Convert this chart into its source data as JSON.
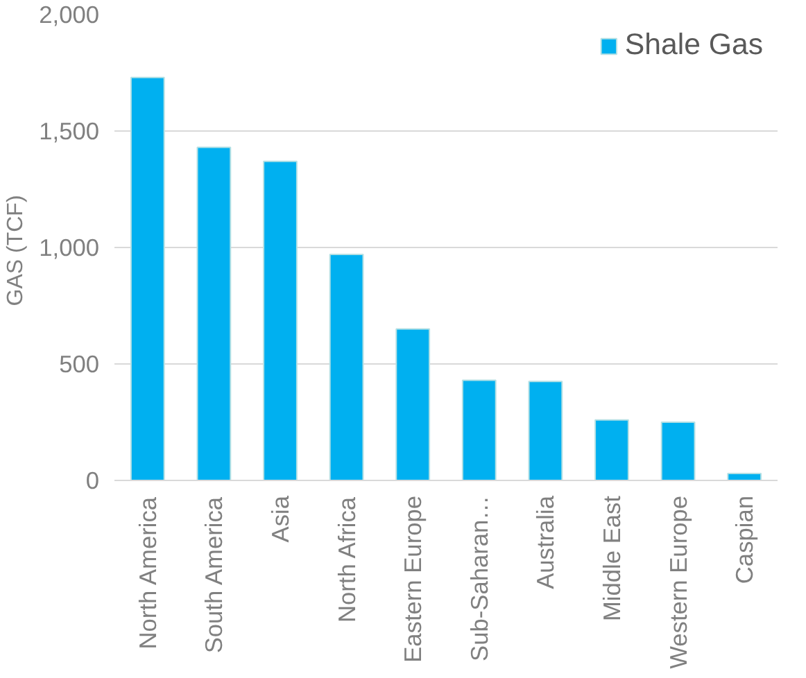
{
  "chart_data": {
    "type": "bar",
    "ylabel": "GAS  (TCF)",
    "categories": [
      "North America",
      "South America",
      "Asia",
      "North Africa",
      "Eastern Europe",
      "Sub-Saharan…",
      "Australia",
      "Middle East",
      "Western Europe",
      "Caspian"
    ],
    "series": [
      {
        "name": "Shale Gas",
        "color": "#00b0f0",
        "values": [
          1730,
          1430,
          1370,
          970,
          650,
          430,
          425,
          260,
          250,
          30
        ]
      }
    ],
    "ylim": [
      0,
      2000
    ],
    "yticks": [
      {
        "value": 0,
        "label": "0"
      },
      {
        "value": 500,
        "label": "500"
      },
      {
        "value": 1000,
        "label": "1,000"
      },
      {
        "value": 1500,
        "label": "1,500"
      },
      {
        "value": 2000,
        "label": "2,000"
      }
    ],
    "grid": "y",
    "legend": "top right"
  }
}
